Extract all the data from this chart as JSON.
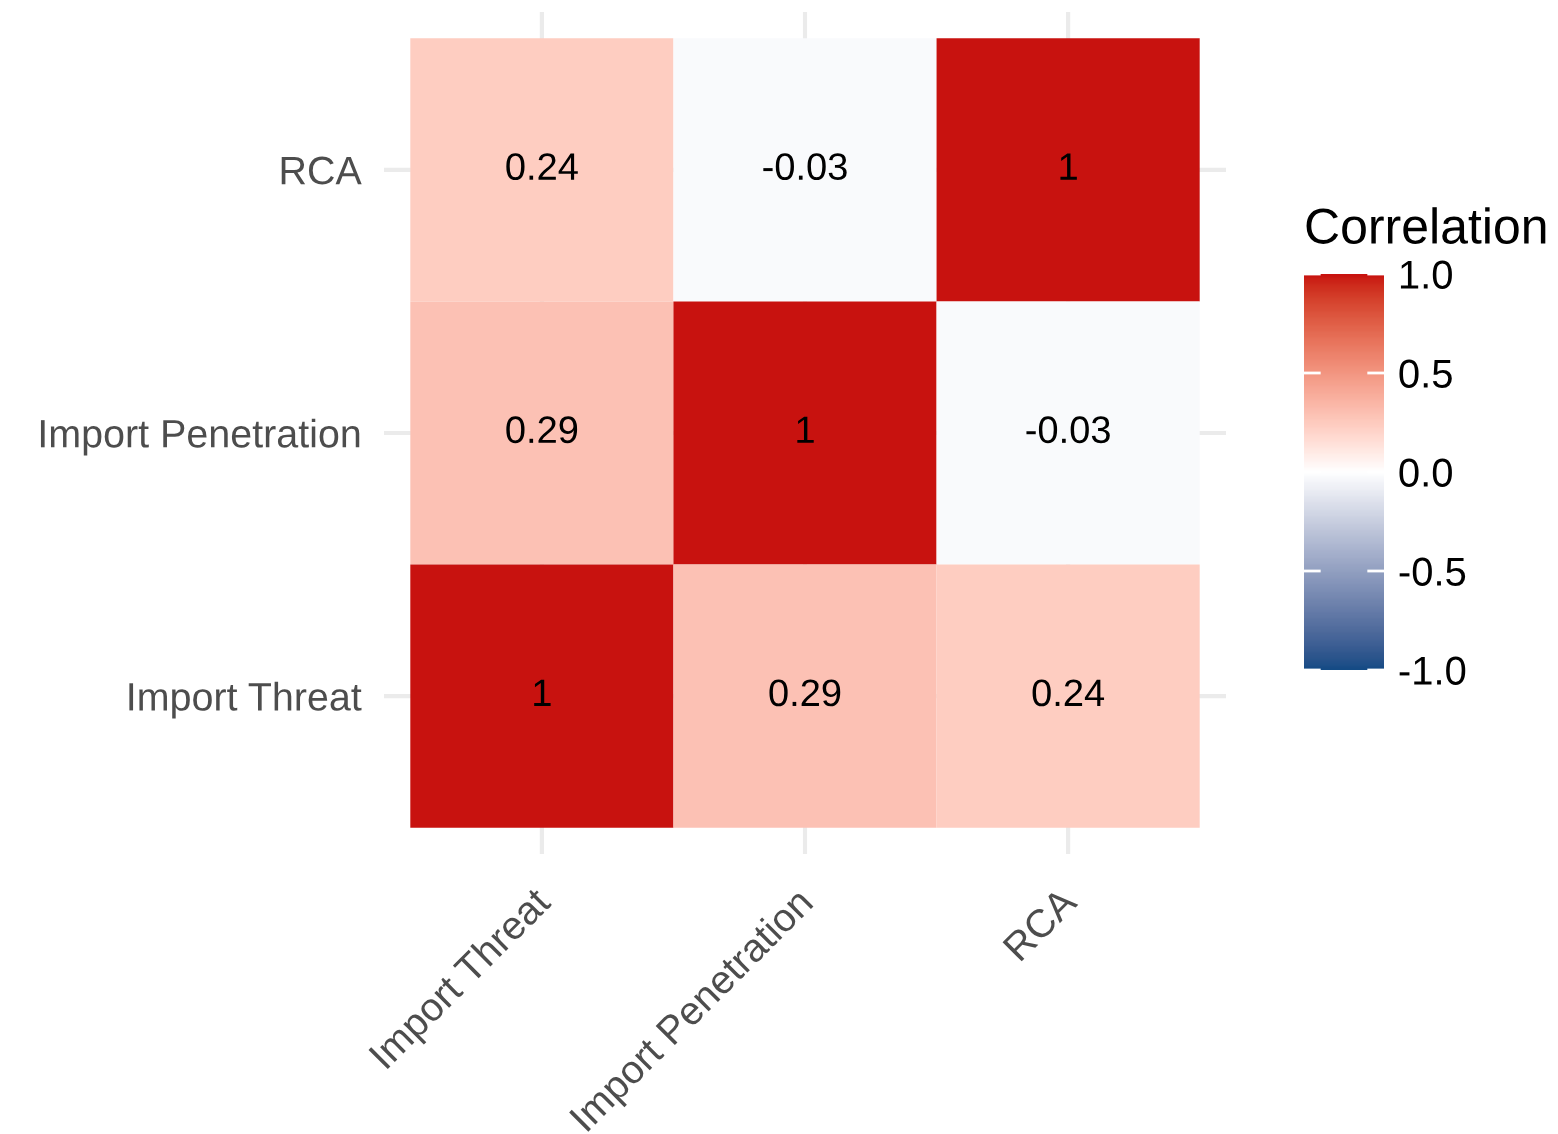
{
  "chart_data": {
    "type": "heatmap",
    "categories": [
      "Import Threat",
      "Import Penetration",
      "RCA"
    ],
    "y_categories": [
      "RCA",
      "Import Penetration",
      "Import Threat"
    ],
    "cells": [
      [
        0.24,
        -0.03,
        1
      ],
      [
        0.29,
        1,
        -0.03
      ],
      [
        1,
        0.29,
        0.24
      ]
    ],
    "data_labels": true,
    "grid": true,
    "clabel": "Correlation",
    "clim": [
      -1,
      1
    ],
    "cticks": [
      {
        "value": -1,
        "label": "-1.0"
      },
      -0.5,
      {
        "value": 0,
        "label": "0.0"
      },
      0.5,
      {
        "value": 1,
        "label": "1.0"
      }
    ]
  }
}
